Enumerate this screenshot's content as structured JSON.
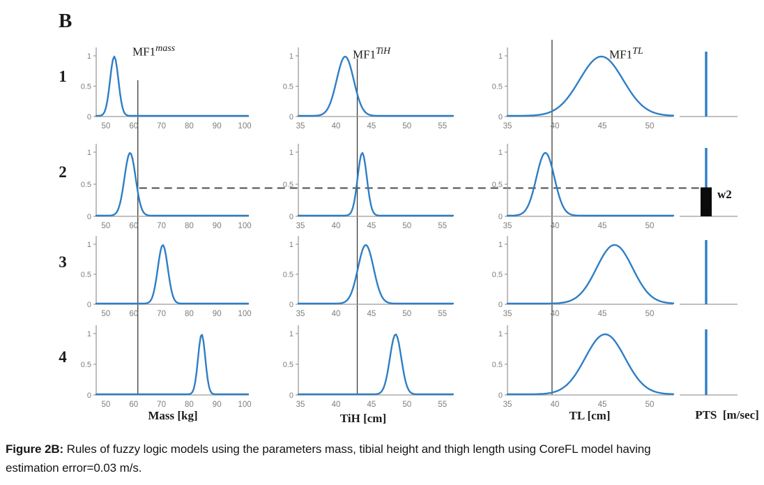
{
  "panel_label": "B",
  "row_labels": [
    "1",
    "2",
    "3",
    "4"
  ],
  "mf_titles": [
    {
      "base": "MF1",
      "sup": "mass"
    },
    {
      "base": "MF1",
      "sup": "TiH"
    },
    {
      "base": "MF1",
      "sup": "TL"
    }
  ],
  "axis_labels": {
    "mass": "Mass [kg]",
    "tih": "TiH [cm]",
    "tl": "TL [cm]",
    "pts": "PTS  [m/sec]"
  },
  "output_weight_label": "w2",
  "colors": {
    "curve": "#2E7EC5",
    "axis": "#9A9A9A",
    "tick_text": "#7D7D7D",
    "guide_line": "#3A3A3A",
    "dashed_line": "#4B4B4B",
    "bar": "#0B0B0B",
    "text": "#1A1A1A"
  },
  "caption": {
    "prefix": "Figure 2B:",
    "line1": " Rules of fuzzy logic models using the parameters mass, tibial height and thigh length using CoreFL model having",
    "line2": "estimation error=0.03 m/s."
  },
  "chart_data": {
    "type": "line",
    "title": "Fuzzy inference rules: 4 rules x 3 Gaussian input membership functions with crisp input lines and rule-2 firing weight",
    "ylim": [
      0,
      1.1
    ],
    "yticks": [
      {
        "label": "1",
        "value": 1
      },
      {
        "label": "0.5",
        "value": 0.5
      },
      {
        "label": "0",
        "value": 0
      }
    ],
    "inputs": [
      {
        "name": "Mass",
        "xlabel": "Mass [kg]",
        "xmin": 46.5,
        "xmax": 101.5,
        "xticks": [
          50,
          60,
          70,
          80,
          90,
          100
        ],
        "input_value": 61.5
      },
      {
        "name": "TiH",
        "xlabel": "TiH [cm]",
        "xmin": 34.7,
        "xmax": 56.5,
        "xticks": [
          35,
          40,
          45,
          50,
          55
        ],
        "input_value": 43
      },
      {
        "name": "TL",
        "xlabel": "TL [cm]",
        "xmin": 35,
        "xmax": 52.5,
        "xticks": [
          35,
          40,
          45,
          50
        ],
        "input_value": 39.7
      }
    ],
    "rules": [
      {
        "label": "1",
        "membership_functions": [
          {
            "center": 53.0,
            "sigma": 1.5
          },
          {
            "center": 41.3,
            "sigma": 1.2
          },
          {
            "center": 44.9,
            "sigma": 2.3
          }
        ]
      },
      {
        "label": "2",
        "membership_functions": [
          {
            "center": 58.7,
            "sigma": 2.0
          },
          {
            "center": 43.7,
            "sigma": 0.65
          },
          {
            "center": 39.0,
            "sigma": 0.95
          }
        ],
        "firing_strength": 0.45,
        "weight_label": "w2"
      },
      {
        "label": "3",
        "membership_functions": [
          {
            "center": 70.5,
            "sigma": 1.8
          },
          {
            "center": 44.2,
            "sigma": 1.1
          },
          {
            "center": 46.3,
            "sigma": 1.9
          }
        ]
      },
      {
        "label": "4",
        "membership_functions": [
          {
            "center": 84.5,
            "sigma": 1.3
          },
          {
            "center": 48.4,
            "sigma": 0.8
          },
          {
            "center": 45.3,
            "sigma": 2.1
          }
        ]
      }
    ],
    "output": {
      "name": "PTS",
      "xlabel": "PTS  [m/sec]",
      "spike_value": 1,
      "bar_rule": 2,
      "bar_height": 0.45
    }
  }
}
